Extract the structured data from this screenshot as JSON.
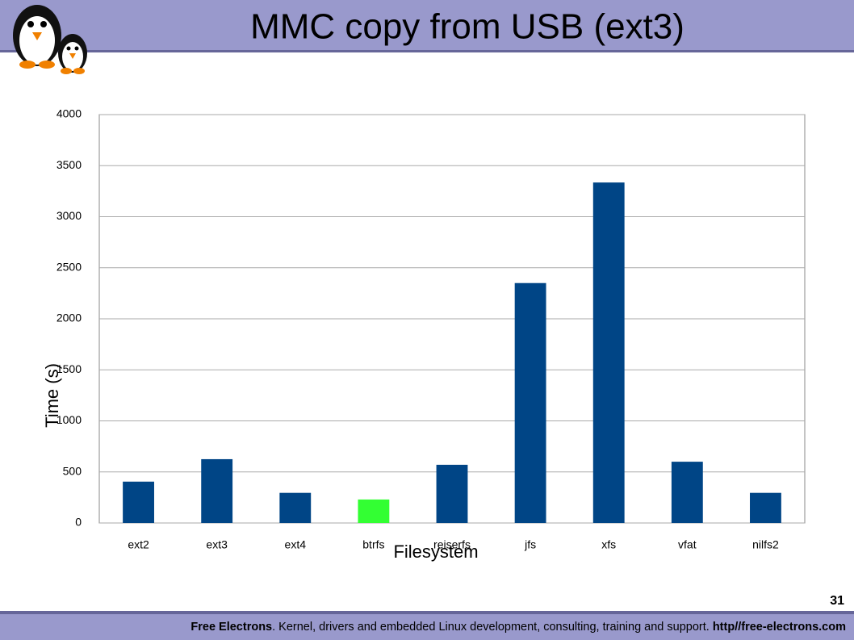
{
  "chart_data": {
    "type": "bar",
    "title": "MMC copy from USB (ext3)",
    "x_label": "Filesystem",
    "y_label": "Time (s)",
    "categories": [
      "ext2",
      "ext3",
      "ext4",
      "btrfs",
      "reiserfs",
      "jfs",
      "xfs",
      "vfat",
      "nilfs2"
    ],
    "values": [
      405,
      625,
      295,
      230,
      570,
      2350,
      3335,
      600,
      295
    ],
    "colors": [
      "#004586",
      "#004586",
      "#004586",
      "#33ff33",
      "#004586",
      "#004586",
      "#004586",
      "#004586",
      "#004586"
    ],
    "ylim": [
      0,
      4000
    ],
    "yticks": [
      0,
      500,
      1000,
      1500,
      2000,
      2500,
      3000,
      3500,
      4000
    ],
    "grid": true
  },
  "page_number": 31,
  "footer": {
    "brand": "Free Electrons",
    "text": ". Kernel, drivers and embedded Linux development, consulting, training and support. ",
    "url": "http//free-electrons.com"
  }
}
